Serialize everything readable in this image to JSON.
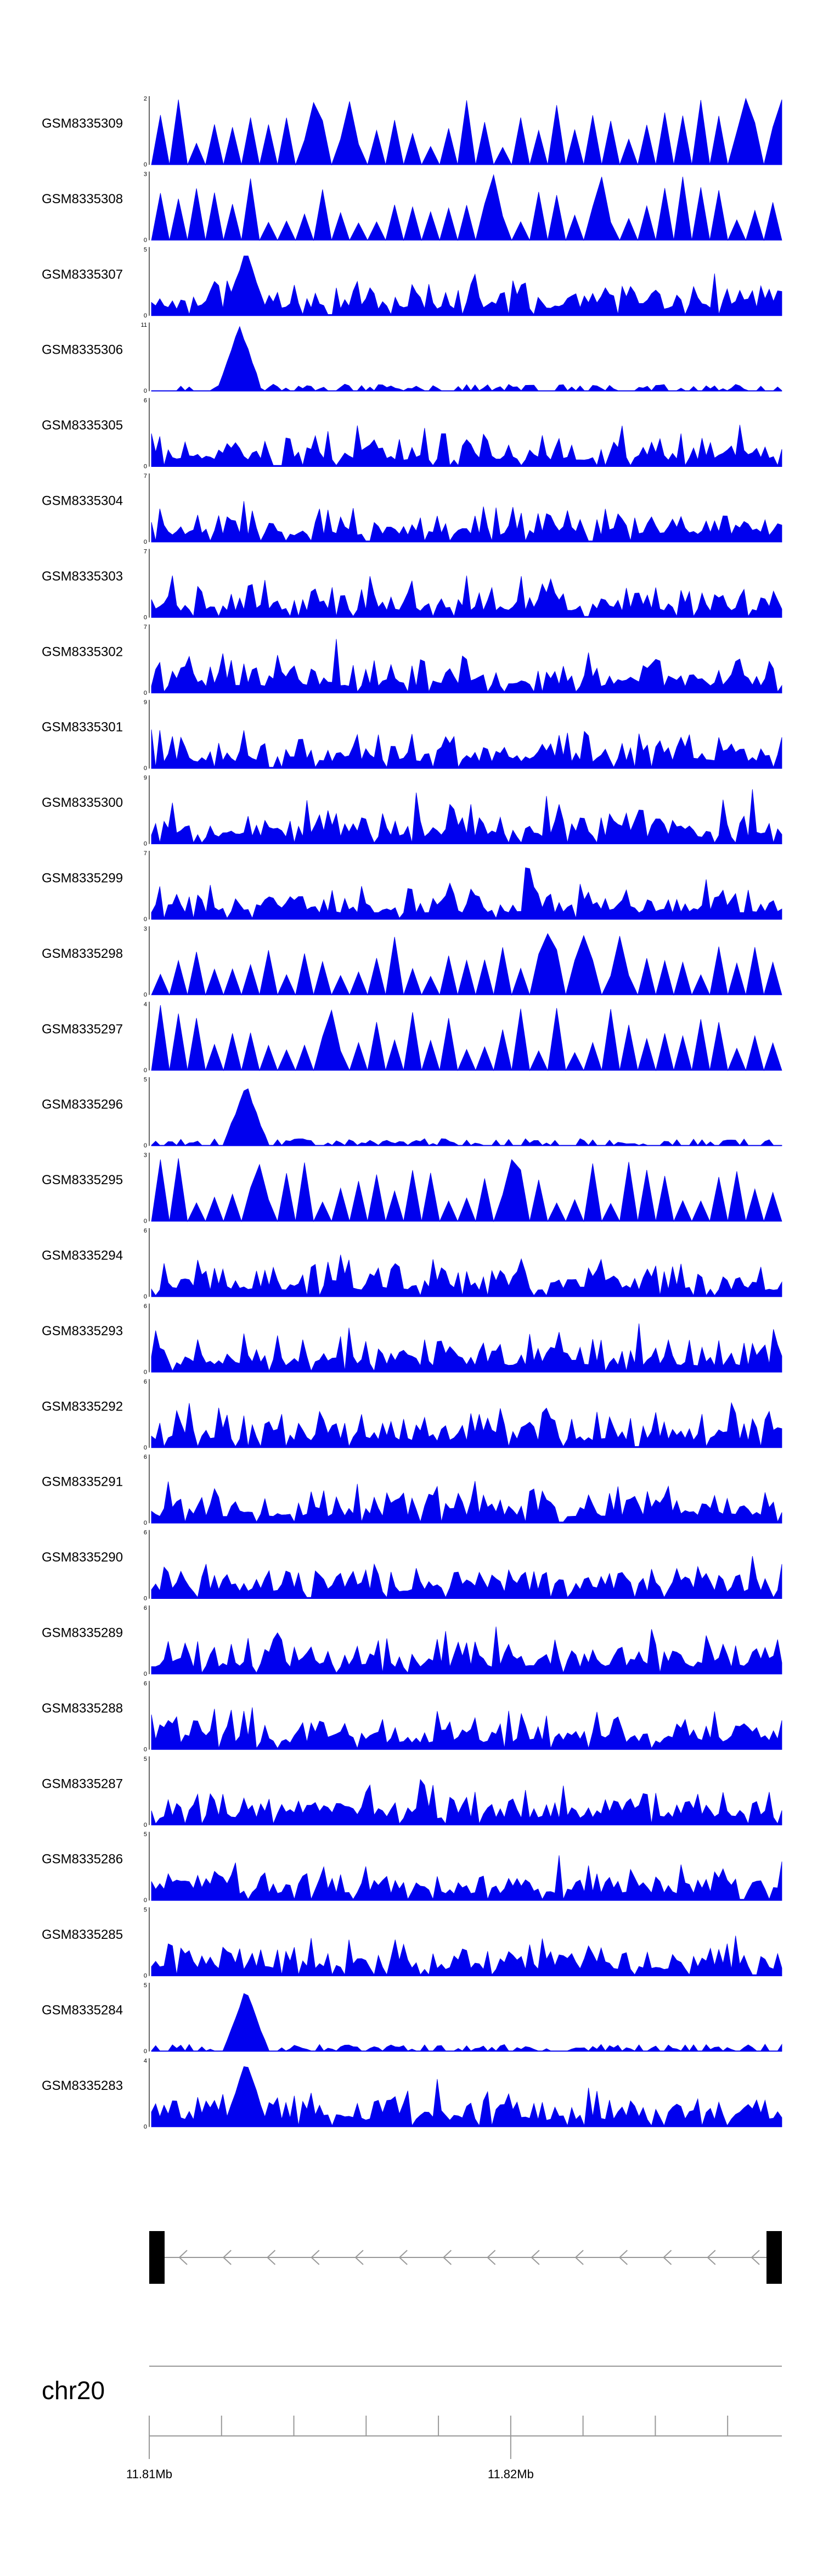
{
  "chart_data": {
    "type": "area",
    "fill_color": "#0000ee",
    "axis_color": "#000000",
    "x_range_bp": [
      11810000,
      11827500
    ],
    "tracks": [
      {
        "name": "GSM8335309",
        "ymax": 2,
        "seed": 309,
        "style": "sparse"
      },
      {
        "name": "GSM8335308",
        "ymax": 3,
        "seed": 308,
        "style": "sparse"
      },
      {
        "name": "GSM8335307",
        "ymax": 5,
        "seed": 307,
        "style": "peak",
        "peak_at": 0.15,
        "peak_height": 0.95
      },
      {
        "name": "GSM8335306",
        "ymax": 11,
        "seed": 306,
        "style": "lowpeak",
        "peak_at": 0.14,
        "peak_height": 0.95
      },
      {
        "name": "GSM8335305",
        "ymax": 6,
        "seed": 305,
        "style": "dense"
      },
      {
        "name": "GSM8335304",
        "ymax": 7,
        "seed": 304,
        "style": "dense"
      },
      {
        "name": "GSM8335303",
        "ymax": 7,
        "seed": 303,
        "style": "dense"
      },
      {
        "name": "GSM8335302",
        "ymax": 7,
        "seed": 302,
        "style": "dense"
      },
      {
        "name": "GSM8335301",
        "ymax": 9,
        "seed": 301,
        "style": "dense"
      },
      {
        "name": "GSM8335300",
        "ymax": 9,
        "seed": 300,
        "style": "dense"
      },
      {
        "name": "GSM8335299",
        "ymax": 7,
        "seed": 299,
        "style": "dense"
      },
      {
        "name": "GSM8335298",
        "ymax": 3,
        "seed": 298,
        "style": "sparse"
      },
      {
        "name": "GSM8335297",
        "ymax": 4,
        "seed": 297,
        "style": "sparse"
      },
      {
        "name": "GSM8335296",
        "ymax": 5,
        "seed": 296,
        "style": "lowpeak",
        "peak_at": 0.15,
        "peak_height": 0.9
      },
      {
        "name": "GSM8335295",
        "ymax": 3,
        "seed": 295,
        "style": "sparse"
      },
      {
        "name": "GSM8335294",
        "ymax": 6,
        "seed": 294,
        "style": "dense"
      },
      {
        "name": "GSM8335293",
        "ymax": 6,
        "seed": 293,
        "style": "dense"
      },
      {
        "name": "GSM8335292",
        "ymax": 6,
        "seed": 292,
        "style": "dense"
      },
      {
        "name": "GSM8335291",
        "ymax": 6,
        "seed": 291,
        "style": "dense"
      },
      {
        "name": "GSM8335290",
        "ymax": 6,
        "seed": 290,
        "style": "dense"
      },
      {
        "name": "GSM8335289",
        "ymax": 6,
        "seed": 289,
        "style": "dense"
      },
      {
        "name": "GSM8335288",
        "ymax": 6,
        "seed": 288,
        "style": "dense"
      },
      {
        "name": "GSM8335287",
        "ymax": 5,
        "seed": 287,
        "style": "dense"
      },
      {
        "name": "GSM8335286",
        "ymax": 5,
        "seed": 286,
        "style": "dense"
      },
      {
        "name": "GSM8335285",
        "ymax": 5,
        "seed": 285,
        "style": "dense"
      },
      {
        "name": "GSM8335284",
        "ymax": 5,
        "seed": 284,
        "style": "lowpeak",
        "peak_at": 0.15,
        "peak_height": 0.92
      },
      {
        "name": "GSM8335283",
        "ymax": 4,
        "seed": 283,
        "style": "peak",
        "peak_at": 0.15,
        "peak_height": 0.95
      }
    ],
    "gene_track": {
      "strand": "-",
      "exon_color": "#000000",
      "intron_color": "#999999"
    },
    "genome_axis": {
      "chromosome": "chr20",
      "tick_labels": [
        {
          "text": "11.81Mb",
          "bp": 11810000
        },
        {
          "text": "11.82Mb",
          "bp": 11820000
        }
      ],
      "minor_tick_step_bp": 2000
    }
  }
}
